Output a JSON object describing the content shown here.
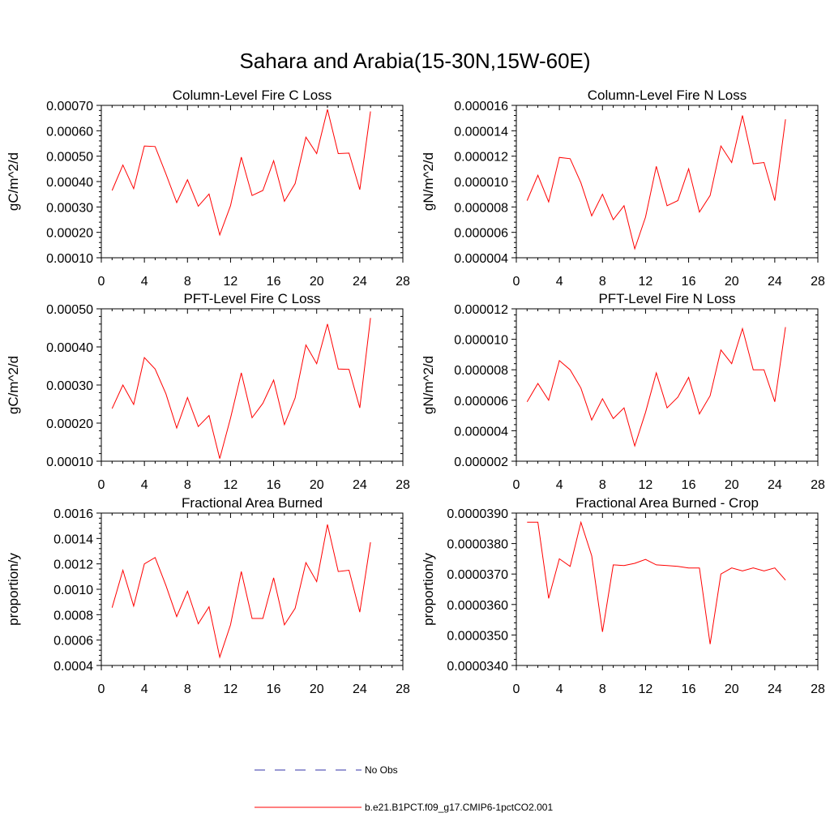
{
  "page_title": "Sahara and Arabia(15-30N,15W-60E)",
  "colors": {
    "series": "#ff0000",
    "no_obs": "#3333aa",
    "axis": "#000000"
  },
  "legend": {
    "items": [
      {
        "label": "No Obs",
        "style": "dashed",
        "color": "#3333aa"
      },
      {
        "label": "b.e21.B1PCT.f09_g17.CMIP6-1pctCO2.001",
        "style": "solid",
        "color": "#ff0000"
      }
    ]
  },
  "chart_data": [
    {
      "type": "line",
      "title": "Column-Level Fire C Loss",
      "ylabel": "gC/m^2/d",
      "xlabel": "",
      "xlim": [
        0,
        28
      ],
      "ylim": [
        0.0001,
        0.0007
      ],
      "xticks": [
        "0",
        "4",
        "8",
        "12",
        "16",
        "20",
        "24",
        "28"
      ],
      "yticks": [
        0.0001,
        0.0002,
        0.0003,
        0.0004,
        0.0005,
        0.0006,
        0.0007
      ],
      "yticklabels": [
        "0.00010",
        "0.00020",
        "0.00030",
        "0.00040",
        "0.00050",
        "0.00060",
        "0.00070"
      ],
      "series": [
        {
          "x": [
            1,
            2,
            3,
            4,
            5,
            6,
            7,
            8,
            9,
            10,
            11,
            12,
            13,
            14,
            15,
            16,
            17,
            18,
            19,
            20,
            21,
            22,
            23,
            24,
            25
          ],
          "values": [
            0.000365,
            0.000465,
            0.000372,
            0.00054,
            0.000538,
            0.00043,
            0.000317,
            0.000407,
            0.000303,
            0.000351,
            0.00019,
            0.000305,
            0.000496,
            0.000345,
            0.000365,
            0.000482,
            0.000322,
            0.000392,
            0.000575,
            0.00051,
            0.000684,
            0.00051,
            0.000512,
            0.000368,
            0.000676
          ]
        }
      ]
    },
    {
      "type": "line",
      "title": "Column-Level Fire N Loss",
      "ylabel": "gN/m^2/d",
      "xlabel": "",
      "xlim": [
        0,
        28
      ],
      "ylim": [
        4e-06,
        1.6e-05
      ],
      "xticks": [
        "0",
        "4",
        "8",
        "12",
        "16",
        "20",
        "24",
        "28"
      ],
      "yticks": [
        4e-06,
        6e-06,
        8e-06,
        1e-05,
        1.2e-05,
        1.4e-05,
        1.6e-05
      ],
      "yticklabels": [
        "0.000004",
        "0.000006",
        "0.000008",
        "0.000010",
        "0.000012",
        "0.000014",
        "0.000016"
      ],
      "series": [
        {
          "x": [
            1,
            2,
            3,
            4,
            5,
            6,
            7,
            8,
            9,
            10,
            11,
            12,
            13,
            14,
            15,
            16,
            17,
            18,
            19,
            20,
            21,
            22,
            23,
            24,
            25
          ],
          "values": [
            8.5e-06,
            1.05e-05,
            8.4e-06,
            1.19e-05,
            1.18e-05,
            9.9e-06,
            7.3e-06,
            9e-06,
            7e-06,
            8.1e-06,
            4.7e-06,
            7.2e-06,
            1.12e-05,
            8.1e-06,
            8.5e-06,
            1.1e-05,
            7.6e-06,
            8.9e-06,
            1.28e-05,
            1.15e-05,
            1.52e-05,
            1.14e-05,
            1.15e-05,
            8.5e-06,
            1.49e-05
          ]
        }
      ]
    },
    {
      "type": "line",
      "title": "PFT-Level Fire C Loss",
      "ylabel": "gC/m^2/d",
      "xlabel": "",
      "xlim": [
        0,
        28
      ],
      "ylim": [
        0.0001,
        0.0005
      ],
      "xticks": [
        "0",
        "4",
        "8",
        "12",
        "16",
        "20",
        "24",
        "28"
      ],
      "yticks": [
        0.0001,
        0.0002,
        0.0003,
        0.0004,
        0.0005
      ],
      "yticklabels": [
        "0.00010",
        "0.00020",
        "0.00030",
        "0.00040",
        "0.00050"
      ],
      "series": [
        {
          "x": [
            1,
            2,
            3,
            4,
            5,
            6,
            7,
            8,
            9,
            10,
            11,
            12,
            13,
            14,
            15,
            16,
            17,
            18,
            19,
            20,
            21,
            22,
            23,
            24,
            25
          ],
          "values": [
            0.000238,
            0.0003,
            0.000249,
            0.000372,
            0.000342,
            0.000277,
            0.000187,
            0.000267,
            0.000191,
            0.00022,
            0.000107,
            0.000213,
            0.000332,
            0.000214,
            0.000252,
            0.000313,
            0.000196,
            0.000266,
            0.000405,
            0.000356,
            0.00046,
            0.000342,
            0.000341,
            0.00024,
            0.000476
          ]
        }
      ]
    },
    {
      "type": "line",
      "title": "PFT-Level Fire N Loss",
      "ylabel": "gN/m^2/d",
      "xlabel": "",
      "xlim": [
        0,
        28
      ],
      "ylim": [
        2e-06,
        1.2e-05
      ],
      "xticks": [
        "0",
        "4",
        "8",
        "12",
        "16",
        "20",
        "24",
        "28"
      ],
      "yticks": [
        2e-06,
        4e-06,
        6e-06,
        8e-06,
        1e-05,
        1.2e-05
      ],
      "yticklabels": [
        "0.000002",
        "0.000004",
        "0.000006",
        "0.000008",
        "0.000010",
        "0.000012"
      ],
      "series": [
        {
          "x": [
            1,
            2,
            3,
            4,
            5,
            6,
            7,
            8,
            9,
            10,
            11,
            12,
            13,
            14,
            15,
            16,
            17,
            18,
            19,
            20,
            21,
            22,
            23,
            24,
            25
          ],
          "values": [
            5.9e-06,
            7.1e-06,
            6e-06,
            8.6e-06,
            8e-06,
            6.8e-06,
            4.7e-06,
            6.1e-06,
            4.8e-06,
            5.5e-06,
            3e-06,
            5.2e-06,
            7.8e-06,
            5.5e-06,
            6.2e-06,
            7.5e-06,
            5.1e-06,
            6.3e-06,
            9.3e-06,
            8.4e-06,
            1.07e-05,
            8e-06,
            8e-06,
            5.9e-06,
            1.08e-05
          ]
        }
      ]
    },
    {
      "type": "line",
      "title": "Fractional Area Burned",
      "ylabel": "proportion/y",
      "xlabel": "",
      "xlim": [
        0,
        28
      ],
      "ylim": [
        0.0004,
        0.0016
      ],
      "xticks": [
        "0",
        "4",
        "8",
        "12",
        "16",
        "20",
        "24",
        "28"
      ],
      "yticks": [
        0.0004,
        0.0006,
        0.0008,
        0.001,
        0.0012,
        0.0014,
        0.0016
      ],
      "yticklabels": [
        "0.0004",
        "0.0006",
        "0.0008",
        "0.0010",
        "0.0012",
        "0.0014",
        "0.0016"
      ],
      "series": [
        {
          "x": [
            1,
            2,
            3,
            4,
            5,
            6,
            7,
            8,
            9,
            10,
            11,
            12,
            13,
            14,
            15,
            16,
            17,
            18,
            19,
            20,
            21,
            22,
            23,
            24,
            25
          ],
          "values": [
            0.000855,
            0.00115,
            0.000867,
            0.0012,
            0.00125,
            0.00103,
            0.000785,
            0.000985,
            0.000728,
            0.000862,
            0.000465,
            0.00072,
            0.00114,
            0.00077,
            0.00077,
            0.00109,
            0.00072,
            0.00085,
            0.00121,
            0.00106,
            0.00151,
            0.00114,
            0.00115,
            0.00082,
            0.00137
          ]
        }
      ]
    },
    {
      "type": "line",
      "title": "Fractional Area Burned - Crop",
      "ylabel": "proportion/y",
      "xlabel": "",
      "xlim": [
        0,
        28
      ],
      "ylim": [
        3.4e-05,
        3.9e-05
      ],
      "xticks": [
        "0",
        "4",
        "8",
        "12",
        "16",
        "20",
        "24",
        "28"
      ],
      "yticks": [
        3.4e-05,
        3.5e-05,
        3.6e-05,
        3.7e-05,
        3.8e-05,
        3.9e-05
      ],
      "yticklabels": [
        "0.0000340",
        "0.0000350",
        "0.0000360",
        "0.0000370",
        "0.0000380",
        "0.0000390"
      ],
      "series": [
        {
          "x": [
            1,
            2,
            3,
            4,
            5,
            6,
            7,
            8,
            9,
            10,
            11,
            12,
            13,
            14,
            15,
            16,
            17,
            18,
            19,
            20,
            21,
            22,
            23,
            24,
            25
          ],
          "values": [
            3.87e-05,
            3.87e-05,
            3.62e-05,
            3.75e-05,
            3.725e-05,
            3.87e-05,
            3.76e-05,
            3.51e-05,
            3.73e-05,
            3.728e-05,
            3.735e-05,
            3.748e-05,
            3.73e-05,
            3.728e-05,
            3.725e-05,
            3.72e-05,
            3.72e-05,
            3.47e-05,
            3.7e-05,
            3.72e-05,
            3.71e-05,
            3.72e-05,
            3.71e-05,
            3.72e-05,
            3.68e-05
          ]
        }
      ]
    }
  ]
}
